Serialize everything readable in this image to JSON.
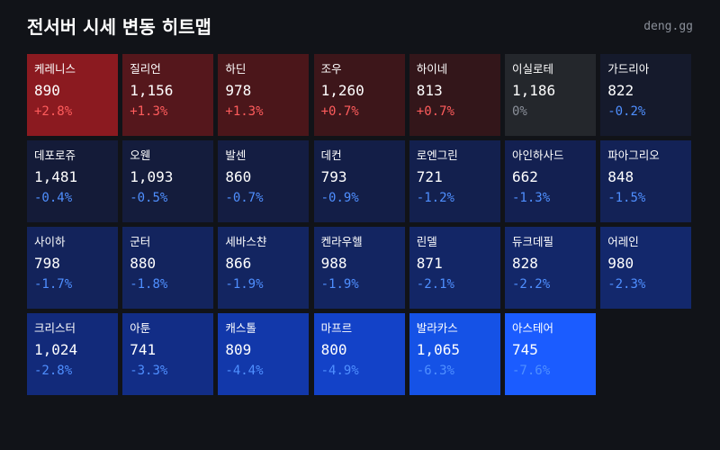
{
  "header": {
    "title": "전서버 시세 변동 히트맵",
    "brand": "deng.gg"
  },
  "tiles": [
    {
      "name": "케레니스",
      "price": "890",
      "change": "+2.8%",
      "color": "#8b1a20"
    },
    {
      "name": "질리언",
      "price": "1,156",
      "change": "+1.3%",
      "color": "#55171c"
    },
    {
      "name": "하딘",
      "price": "978",
      "change": "+1.3%",
      "color": "#4b161a"
    },
    {
      "name": "조우",
      "price": "1,260",
      "change": "+0.7%",
      "color": "#3d161a"
    },
    {
      "name": "하이네",
      "price": "813",
      "change": "+0.7%",
      "color": "#33161a"
    },
    {
      "name": "이실로테",
      "price": "1,186",
      "change": "0%",
      "color": "#24272c"
    },
    {
      "name": "가드리아",
      "price": "822",
      "change": "-0.2%",
      "color": "#151a2c"
    },
    {
      "name": "데포로쥬",
      "price": "1,481",
      "change": "-0.4%",
      "color": "#141b38"
    },
    {
      "name": "오웬",
      "price": "1,093",
      "change": "-0.5%",
      "color": "#141c3c"
    },
    {
      "name": "발센",
      "price": "860",
      "change": "-0.7%",
      "color": "#141d42"
    },
    {
      "name": "데컨",
      "price": "793",
      "change": "-0.9%",
      "color": "#131e47"
    },
    {
      "name": "로엔그린",
      "price": "721",
      "change": "-1.2%",
      "color": "#13204e"
    },
    {
      "name": "아인하사드",
      "price": "662",
      "change": "-1.3%",
      "color": "#132051"
    },
    {
      "name": "파아그리오",
      "price": "848",
      "change": "-1.5%",
      "color": "#132256"
    },
    {
      "name": "사이하",
      "price": "798",
      "change": "-1.7%",
      "color": "#13235b"
    },
    {
      "name": "군터",
      "price": "880",
      "change": "-1.8%",
      "color": "#13245e"
    },
    {
      "name": "세바스챤",
      "price": "866",
      "change": "-1.9%",
      "color": "#132561"
    },
    {
      "name": "켄라우헬",
      "price": "988",
      "change": "-1.9%",
      "color": "#132561"
    },
    {
      "name": "린델",
      "price": "871",
      "change": "-2.1%",
      "color": "#132666"
    },
    {
      "name": "듀크데필",
      "price": "828",
      "change": "-2.2%",
      "color": "#132769"
    },
    {
      "name": "어레인",
      "price": "980",
      "change": "-2.3%",
      "color": "#13286c"
    },
    {
      "name": "크리스터",
      "price": "1,024",
      "change": "-2.8%",
      "color": "#122a7a"
    },
    {
      "name": "아툰",
      "price": "741",
      "change": "-3.3%",
      "color": "#122d86"
    },
    {
      "name": "캐스톨",
      "price": "809",
      "change": "-4.4%",
      "color": "#1238aa"
    },
    {
      "name": "마프르",
      "price": "800",
      "change": "-4.9%",
      "color": "#1342c8"
    },
    {
      "name": "발라카스",
      "price": "1,065",
      "change": "-6.3%",
      "color": "#1552e6"
    },
    {
      "name": "아스테어",
      "price": "745",
      "change": "-7.6%",
      "color": "#1b5cff"
    }
  ]
}
